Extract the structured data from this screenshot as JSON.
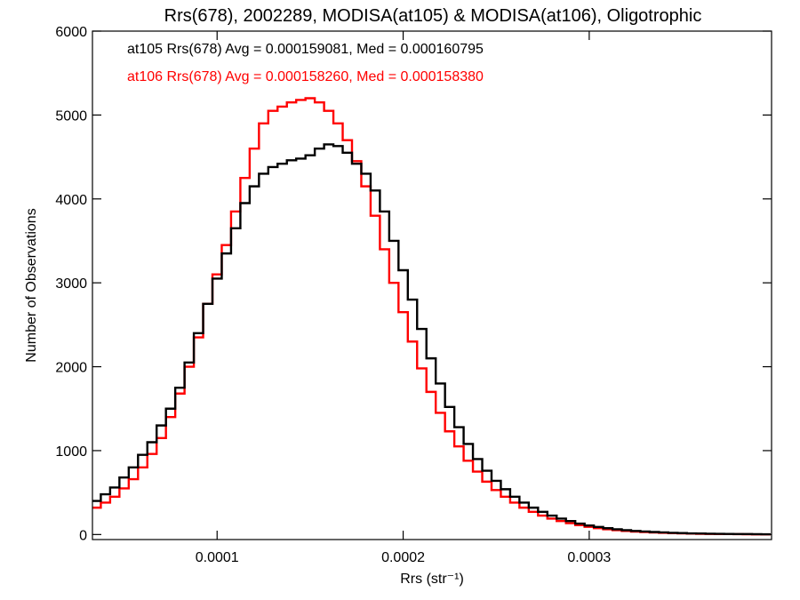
{
  "chart_data": {
    "type": "line",
    "title": "Rrs(678), 2002289, MODISA(at105) & MODISA(at106), Oligotrophic",
    "xlabel": "Rrs (str⁻¹)",
    "ylabel": "Number of Observations",
    "xlim": [
      3.3e-05,
      0.000398
    ],
    "ylim": [
      -60,
      6000
    ],
    "xticks": [
      0.0001,
      0.0002,
      0.0003
    ],
    "xtick_labels": [
      "0.0001",
      "0.0002",
      "0.0003"
    ],
    "yticks": [
      0,
      1000,
      2000,
      3000,
      4000,
      5000,
      6000
    ],
    "ytick_labels": [
      "0",
      "1000",
      "2000",
      "3000",
      "4000",
      "5000",
      "6000"
    ],
    "grid": false,
    "legend_position": "top-left",
    "series": [
      {
        "legend": "at105 Rrs(678) Avg = 0.000159081, Med = 0.000160795",
        "color": "#000000",
        "x": [
          3.5e-05,
          4e-05,
          4.5e-05,
          5e-05,
          5.5e-05,
          6e-05,
          6.5e-05,
          7e-05,
          7.5e-05,
          8e-05,
          8.5e-05,
          9e-05,
          9.5e-05,
          0.0001,
          0.000105,
          0.00011,
          0.000115,
          0.00012,
          0.000125,
          0.00013,
          0.000135,
          0.00014,
          0.000145,
          0.00015,
          0.000155,
          0.00016,
          0.000165,
          0.00017,
          0.000175,
          0.00018,
          0.000185,
          0.00019,
          0.000195,
          0.0002,
          0.000205,
          0.00021,
          0.000215,
          0.00022,
          0.000225,
          0.00023,
          0.000235,
          0.00024,
          0.000245,
          0.00025,
          0.000255,
          0.00026,
          0.000265,
          0.00027,
          0.000275,
          0.00028,
          0.000285,
          0.00029,
          0.000295,
          0.0003,
          0.000305,
          0.00031,
          0.000315,
          0.00032,
          0.000325,
          0.00033,
          0.000335,
          0.00034,
          0.000345,
          0.00035,
          0.000355,
          0.00036,
          0.000365,
          0.00037,
          0.000375,
          0.00038,
          0.000385,
          0.00039,
          0.000395
        ],
        "y": [
          400,
          480,
          560,
          680,
          800,
          950,
          1100,
          1300,
          1500,
          1750,
          2050,
          2400,
          2750,
          3050,
          3350,
          3650,
          3950,
          4150,
          4300,
          4380,
          4420,
          4460,
          4480,
          4520,
          4600,
          4650,
          4630,
          4550,
          4420,
          4300,
          4100,
          3850,
          3500,
          3150,
          2800,
          2450,
          2100,
          1800,
          1520,
          1280,
          1080,
          900,
          760,
          640,
          540,
          450,
          380,
          320,
          270,
          225,
          190,
          160,
          130,
          108,
          90,
          75,
          62,
          52,
          43,
          36,
          30,
          25,
          20,
          17,
          14,
          12,
          10,
          8,
          7,
          6,
          5,
          4,
          3
        ]
      },
      {
        "legend": "at106 Rrs(678) Avg = 0.000158260, Med = 0.000158380",
        "color": "#ff0000",
        "x": [
          3.5e-05,
          4e-05,
          4.5e-05,
          5e-05,
          5.5e-05,
          6e-05,
          6.5e-05,
          7e-05,
          7.5e-05,
          8e-05,
          8.5e-05,
          9e-05,
          9.5e-05,
          0.0001,
          0.000105,
          0.00011,
          0.000115,
          0.00012,
          0.000125,
          0.00013,
          0.000135,
          0.00014,
          0.000145,
          0.00015,
          0.000155,
          0.00016,
          0.000165,
          0.00017,
          0.000175,
          0.00018,
          0.000185,
          0.00019,
          0.000195,
          0.0002,
          0.000205,
          0.00021,
          0.000215,
          0.00022,
          0.000225,
          0.00023,
          0.000235,
          0.00024,
          0.000245,
          0.00025,
          0.000255,
          0.00026,
          0.000265,
          0.00027,
          0.000275,
          0.00028,
          0.000285,
          0.00029,
          0.000295,
          0.0003,
          0.000305,
          0.00031,
          0.000315,
          0.00032,
          0.000325,
          0.00033,
          0.000335,
          0.00034,
          0.000345,
          0.00035,
          0.000355,
          0.00036,
          0.000365,
          0.00037,
          0.000375,
          0.00038,
          0.000385,
          0.00039,
          0.000395
        ],
        "y": [
          320,
          380,
          450,
          550,
          660,
          800,
          960,
          1150,
          1400,
          1680,
          2000,
          2350,
          2750,
          3100,
          3450,
          3850,
          4250,
          4600,
          4900,
          5050,
          5100,
          5150,
          5180,
          5200,
          5150,
          5050,
          4900,
          4700,
          4450,
          4150,
          3800,
          3400,
          3000,
          2650,
          2300,
          1980,
          1700,
          1450,
          1230,
          1050,
          880,
          750,
          630,
          530,
          450,
          380,
          320,
          270,
          225,
          190,
          160,
          135,
          112,
          92,
          76,
          63,
          52,
          43,
          35,
          29,
          24,
          20,
          16,
          13,
          11,
          9,
          7,
          6,
          5,
          4,
          3,
          2,
          2
        ]
      }
    ]
  }
}
